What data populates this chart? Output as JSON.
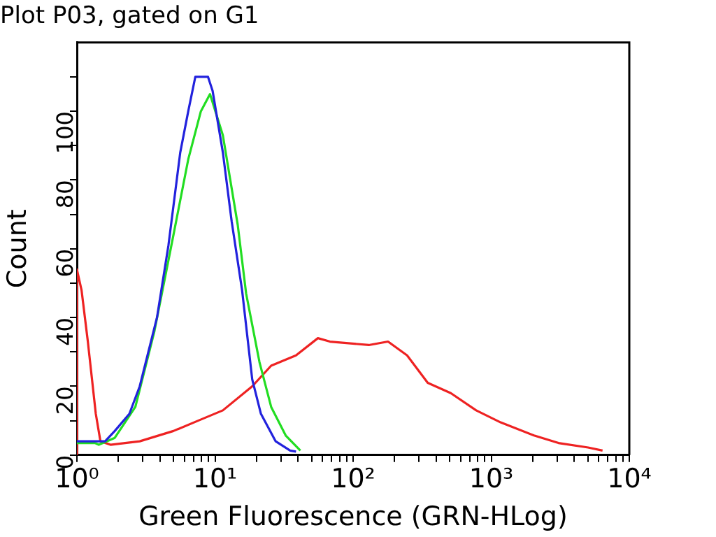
{
  "chart_data": {
    "type": "line",
    "title": "Plot P03, gated on G1",
    "xlabel": "Green Fluorescence (GRN-HLog)",
    "ylabel": "Count",
    "log": "x",
    "grid": false,
    "legend": false,
    "marker": "none",
    "line_style": "solid",
    "xlim": [
      1,
      10000
    ],
    "ylim": [
      0,
      120
    ],
    "xticks": [
      {
        "value": 1,
        "label": "10⁰"
      },
      {
        "value": 2,
        "label": null
      },
      {
        "value": 3,
        "label": null
      },
      {
        "value": 4,
        "label": null
      },
      {
        "value": 5,
        "label": null
      },
      {
        "value": 6,
        "label": null
      },
      {
        "value": 7,
        "label": null
      },
      {
        "value": 8,
        "label": null
      },
      {
        "value": 9,
        "label": null
      },
      {
        "value": 10,
        "label": "10¹"
      },
      {
        "value": 20,
        "label": null
      },
      {
        "value": 30,
        "label": null
      },
      {
        "value": 40,
        "label": null
      },
      {
        "value": 50,
        "label": null
      },
      {
        "value": 60,
        "label": null
      },
      {
        "value": 70,
        "label": null
      },
      {
        "value": 80,
        "label": null
      },
      {
        "value": 90,
        "label": null
      },
      {
        "value": 100,
        "label": "10²"
      },
      {
        "value": 200,
        "label": null
      },
      {
        "value": 300,
        "label": null
      },
      {
        "value": 400,
        "label": null
      },
      {
        "value": 500,
        "label": null
      },
      {
        "value": 600,
        "label": null
      },
      {
        "value": 700,
        "label": null
      },
      {
        "value": 800,
        "label": null
      },
      {
        "value": 900,
        "label": null
      },
      {
        "value": 1000,
        "label": "10³"
      },
      {
        "value": 2000,
        "label": null
      },
      {
        "value": 3000,
        "label": null
      },
      {
        "value": 4000,
        "label": null
      },
      {
        "value": 5000,
        "label": null
      },
      {
        "value": 6000,
        "label": null
      },
      {
        "value": 7000,
        "label": null
      },
      {
        "value": 8000,
        "label": null
      },
      {
        "value": 9000,
        "label": null
      },
      {
        "value": 10000,
        "label": "10⁴"
      }
    ],
    "yticks": [
      0,
      {
        "value": 10,
        "label": null
      },
      20,
      {
        "value": 30,
        "label": null
      },
      40,
      {
        "value": 50,
        "label": null
      },
      60,
      {
        "value": 70,
        "label": null
      },
      80,
      {
        "value": 90,
        "label": null
      },
      100,
      {
        "value": 110,
        "label": null
      }
    ],
    "series": [
      {
        "color": "#2222dd",
        "x": [
          1,
          1.6,
          1.88,
          2.4,
          2.85,
          3.8,
          4.6,
          5.6,
          6.4,
          7.2,
          8.9,
          9.6,
          11.4,
          13.2,
          15.7,
          18.6,
          21.5,
          27.5,
          35,
          38.6
        ],
        "values": [
          4,
          4,
          7,
          12,
          20,
          40,
          61,
          88,
          100,
          110,
          110,
          106,
          88,
          68,
          48,
          22,
          12,
          4,
          1.3,
          1
        ]
      },
      {
        "color": "#22dd22",
        "x": [
          1,
          1.35,
          1.44,
          1.88,
          2.65,
          3.64,
          5,
          6.4,
          7.9,
          9.2,
          11.4,
          14.6,
          16.8,
          21,
          25.5,
          32.5,
          41.5
        ],
        "values": [
          3.5,
          3.5,
          3,
          5,
          14,
          36,
          64,
          86,
          100,
          105,
          93,
          67,
          47,
          27,
          14,
          5.7,
          1.3
        ]
      },
      {
        "color": "#ee2222",
        "x": [
          1,
          1,
          1.08,
          1.2,
          1.37,
          1.48,
          1.75,
          2.85,
          5,
          7.55,
          11.4,
          18.6,
          25.5,
          38.6,
          55.6,
          68,
          130,
          179,
          246,
          347,
          510,
          778,
          1170,
          2040,
          3070,
          5030,
          6400
        ],
        "values": [
          0,
          54,
          48,
          33,
          12,
          4,
          3,
          4,
          7,
          10,
          13,
          20,
          26,
          29,
          34,
          33,
          32,
          33,
          29,
          21,
          18,
          13,
          9.5,
          5.7,
          3.5,
          2.2,
          1.3
        ]
      }
    ]
  }
}
